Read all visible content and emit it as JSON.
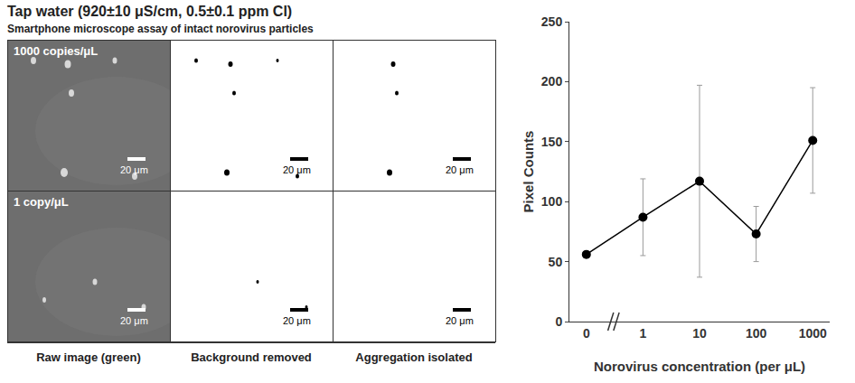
{
  "figure": {
    "title": "Tap water (920±10 μS/cm, 0.5±0.1 ppm Cl)",
    "subtitle": "Smartphone microscope assay of intact norovirus particles",
    "rows": [
      "1000 copies/μL",
      "1 copy/μL"
    ],
    "columns": [
      "Raw image (green)",
      "Background removed",
      "Aggregation isolated"
    ],
    "scale_bar": "20 μm"
  },
  "chart_data": {
    "type": "line",
    "categories": [
      "0",
      "1",
      "10",
      "100",
      "1000"
    ],
    "values": [
      56,
      87,
      117,
      73,
      151
    ],
    "error": [
      0,
      32,
      80,
      23,
      44
    ],
    "color": "#000000",
    "marker": "circle",
    "x_label": "Norovirus concentration (per μL)",
    "y_label": "Pixel Counts",
    "ylim": [
      0,
      250
    ],
    "yticks": [
      0,
      50,
      100,
      150,
      200,
      250
    ],
    "grid": false
  }
}
